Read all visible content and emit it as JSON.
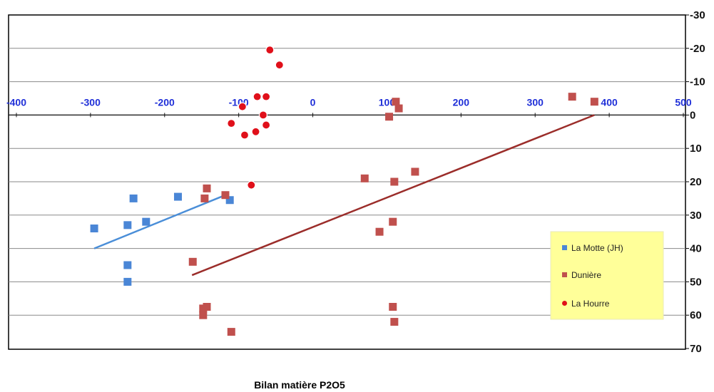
{
  "chart_data": {
    "type": "scatter",
    "title": "",
    "xlabel": "Bilan  matière P2O5",
    "ylabel": "",
    "xlim": [
      -400,
      500
    ],
    "ylim": [
      -30,
      70
    ],
    "x_ticks": [
      -400,
      -300,
      -200,
      -100,
      0,
      100,
      200,
      300,
      400,
      500
    ],
    "y_ticks": [
      -30,
      -20,
      -10,
      0,
      10,
      20,
      30,
      40,
      50,
      60,
      70
    ],
    "y_axis_position": "right",
    "y_axis_reversed": true,
    "x_axis_crosses_y_at": 0,
    "grid": "horizontal",
    "legend_position": "right",
    "series": [
      {
        "name": "La Motte (JH)",
        "marker": "square",
        "color": "#4a86d6",
        "points": [
          [
            -295,
            34
          ],
          [
            -250,
            33
          ],
          [
            -242,
            25
          ],
          [
            -225,
            32
          ],
          [
            -182,
            24.5
          ],
          [
            -112,
            25.5
          ],
          [
            -250,
            45
          ],
          [
            -250,
            50
          ]
        ],
        "trendline": [
          [
            -295,
            40
          ],
          [
            -118,
            24
          ]
        ]
      },
      {
        "name": "Dunière",
        "marker": "square",
        "color": "#c0504d",
        "points": [
          [
            -143,
            22
          ],
          [
            -146,
            25
          ],
          [
            -118,
            24
          ],
          [
            -162,
            44
          ],
          [
            -148,
            58
          ],
          [
            -143,
            57.5
          ],
          [
            -148,
            60
          ],
          [
            -110,
            65
          ],
          [
            70,
            19
          ],
          [
            90,
            35
          ],
          [
            108,
            32
          ],
          [
            110,
            20
          ],
          [
            138,
            17
          ],
          [
            108,
            57.5
          ],
          [
            110,
            62
          ],
          [
            103,
            0.5
          ],
          [
            112,
            -4
          ],
          [
            116,
            -2
          ],
          [
            350,
            -5.5
          ],
          [
            380,
            -4
          ]
        ],
        "trendline": [
          [
            -163,
            48
          ],
          [
            380,
            0
          ]
        ]
      },
      {
        "name": "La Hourre",
        "marker": "circle",
        "color": "#e0101a",
        "points": [
          [
            -58,
            -19.5
          ],
          [
            -45,
            -15
          ],
          [
            -75,
            -5.5
          ],
          [
            -63,
            -5.5
          ],
          [
            -95,
            -2.5
          ],
          [
            -67,
            0
          ],
          [
            -110,
            2.5
          ],
          [
            -92,
            6
          ],
          [
            -77,
            5
          ],
          [
            -63,
            3
          ],
          [
            -83,
            21
          ]
        ]
      }
    ]
  }
}
